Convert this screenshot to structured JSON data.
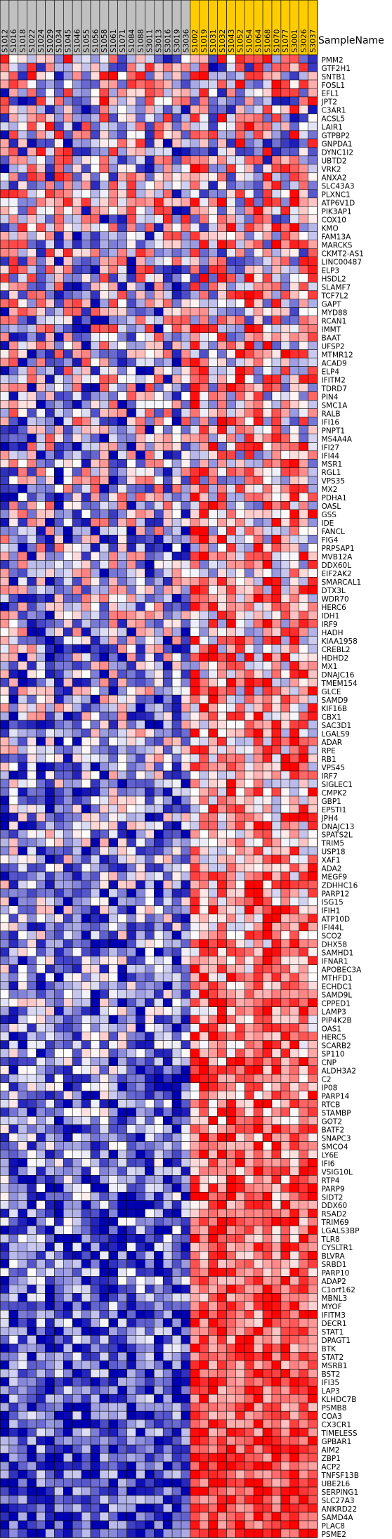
{
  "chart_data": {
    "type": "heatmap",
    "header_label": "SampleName",
    "columns": [
      {
        "name": "S1012",
        "group": "a"
      },
      {
        "name": "S1016",
        "group": "a"
      },
      {
        "name": "S1018",
        "group": "a"
      },
      {
        "name": "S1022",
        "group": "a"
      },
      {
        "name": "S1024",
        "group": "a"
      },
      {
        "name": "S1029",
        "group": "a"
      },
      {
        "name": "S1034",
        "group": "a"
      },
      {
        "name": "S1045",
        "group": "a"
      },
      {
        "name": "S1046",
        "group": "a"
      },
      {
        "name": "S1055",
        "group": "a"
      },
      {
        "name": "S1056",
        "group": "a"
      },
      {
        "name": "S1058",
        "group": "a"
      },
      {
        "name": "S1061",
        "group": "a"
      },
      {
        "name": "S1071",
        "group": "a"
      },
      {
        "name": "S1084",
        "group": "a"
      },
      {
        "name": "S1088",
        "group": "a"
      },
      {
        "name": "S3011",
        "group": "a"
      },
      {
        "name": "S3013",
        "group": "a"
      },
      {
        "name": "S3016",
        "group": "a"
      },
      {
        "name": "S3019",
        "group": "a"
      },
      {
        "name": "S3036",
        "group": "a"
      },
      {
        "name": "S1002",
        "group": "b"
      },
      {
        "name": "S1019",
        "group": "b"
      },
      {
        "name": "S1031",
        "group": "b"
      },
      {
        "name": "S1032",
        "group": "b"
      },
      {
        "name": "S1043",
        "group": "b"
      },
      {
        "name": "S1052",
        "group": "b"
      },
      {
        "name": "S1054",
        "group": "b"
      },
      {
        "name": "S1064",
        "group": "b"
      },
      {
        "name": "S1068",
        "group": "b"
      },
      {
        "name": "S1070",
        "group": "b"
      },
      {
        "name": "S1077",
        "group": "b"
      },
      {
        "name": "S3001",
        "group": "b"
      },
      {
        "name": "S3026",
        "group": "b"
      },
      {
        "name": "S3037",
        "group": "b"
      }
    ],
    "rows": [
      "PMM2",
      "GTF2H1",
      "SNTB1",
      "FOSL1",
      "EFL1",
      "JPT2",
      "C3AR1",
      "ACSL5",
      "LAIR1",
      "GTPBP2",
      "GNPDA1",
      "DYNC1I2",
      "UBTD2",
      "VRK2",
      "ANXA2",
      "SLC43A3",
      "PLXNC1",
      "ATP6V1D",
      "PIK3AP1",
      "COX10",
      "KMO",
      "FAM13A",
      "MARCKS",
      "CKMT2-AS1",
      "LINC00487",
      "ELP3",
      "HSDL2",
      "SLAMF7",
      "TCF7L2",
      "GAPT",
      "MYD88",
      "RCAN1",
      "IMMT",
      "BAAT",
      "UFSP2",
      "MTMR12",
      "ACAD9",
      "ELP4",
      "IFITM2",
      "TDRD7",
      "PIN4",
      "SMC1A",
      "RALB",
      "IFI16",
      "PNPT1",
      "MS4A4A",
      "IFI27",
      "IFI44",
      "MSR1",
      "RGL1",
      "VPS35",
      "MX2",
      "PDHA1",
      "OASL",
      "GSS",
      "IDE",
      "FANCL",
      "FIG4",
      "PRPSAP1",
      "MVB12A",
      "DDX60L",
      "EIF2AK2",
      "SMARCAL1",
      "DTX3L",
      "WDR70",
      "HERC6",
      "IDH1",
      "IRF9",
      "HADH",
      "KIAA1958",
      "CREBL2",
      "HDHD2",
      "MX1",
      "DNAJC16",
      "TMEM154",
      "GLCE",
      "SAMD9",
      "KIF16B",
      "CBX1",
      "SAC3D1",
      "LGALS9",
      "ADAR",
      "RPE",
      "RB1",
      "VPS45",
      "IRF7",
      "SIGLEC1",
      "CMPK2",
      "GBP1",
      "EPSTI1",
      "JPH4",
      "DNAJC13",
      "SPATS2L",
      "TRIM5",
      "USP18",
      "XAF1",
      "ADA2",
      "MEGF9",
      "ZDHHC16",
      "PARP12",
      "ISG15",
      "IFIH1",
      "ATP10D",
      "IFI44L",
      "SCO2",
      "DHX58",
      "SAMHD1",
      "IFNAR1",
      "APOBEC3A",
      "MTHFD1",
      "ECHDC1",
      "SAMD9L",
      "CPPED1",
      "LAMP3",
      "PIP4K2B",
      "OAS1",
      "HERC5",
      "SCARB2",
      "SP110",
      "CNP",
      "ALDH3A2",
      "C2",
      "IP08",
      "PARP14",
      "RTCB",
      "STAMBP",
      "GOT2",
      "BATF2",
      "SNAPC3",
      "SMCO4",
      "LY6E",
      "IFI6",
      "VSIG10L",
      "RTP4",
      "PARP9",
      "SIDT2",
      "DDX60",
      "RSAD2",
      "TRIM69",
      "LGALS3BP",
      "TLR8",
      "CYSLTR1",
      "BLVRA",
      "SRBD1",
      "PARP10",
      "ADAP2",
      "C1orf162",
      "MBNL3",
      "MYOF",
      "IFITM3",
      "DECR1",
      "STAT1",
      "DPAGT1",
      "BTK",
      "STAT2",
      "MSRB1",
      "BST2",
      "IFI35",
      "LAP3",
      "KLHDC7B",
      "PSMB8",
      "COA3",
      "CX3CR1",
      "TIMELESS",
      "GPBAR1",
      "AIM2",
      "ZBP1",
      "ACP2",
      "TNFSF13B",
      "UBE2L6",
      "SERPING1",
      "SLC27A3",
      "ANKRD22",
      "SAMD4A",
      "PLAC8",
      "PSME2"
    ],
    "colors": {
      "group_a_label_bg": "#c0c0c0",
      "group_b_label_bg": "#ffcc00",
      "high": "#ff0000",
      "mid": "#ffffff",
      "low": "#0000b0",
      "grid": "#000000"
    }
  }
}
